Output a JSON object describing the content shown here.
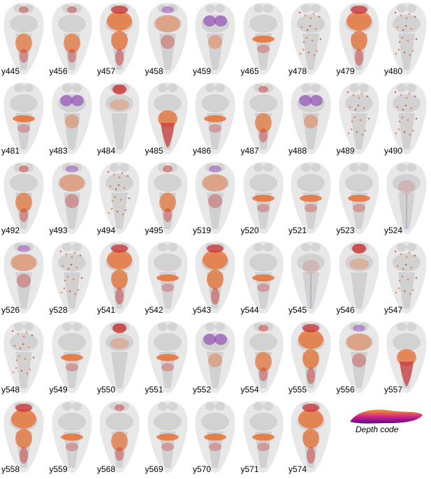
{
  "panels": [
    {
      "label": "y445",
      "pattern": "hindbrain"
    },
    {
      "label": "y456",
      "pattern": "hindbrain"
    },
    {
      "label": "y457",
      "pattern": "broad"
    },
    {
      "label": "y458",
      "pattern": "broad-light"
    },
    {
      "label": "y459",
      "pattern": "tectum-purple"
    },
    {
      "label": "y465",
      "pattern": "band"
    },
    {
      "label": "y478",
      "pattern": "sparse"
    },
    {
      "label": "y479",
      "pattern": "broad"
    },
    {
      "label": "y480",
      "pattern": "sparse"
    },
    {
      "label": "y481",
      "pattern": "band"
    },
    {
      "label": "y483",
      "pattern": "tectum-purple"
    },
    {
      "label": "y484",
      "pattern": "forebrain"
    },
    {
      "label": "y485",
      "pattern": "hindbrain-strong"
    },
    {
      "label": "y486",
      "pattern": "band"
    },
    {
      "label": "y487",
      "pattern": "hindbrain"
    },
    {
      "label": "y488",
      "pattern": "tectum-purple"
    },
    {
      "label": "y489",
      "pattern": "sparse"
    },
    {
      "label": "y490",
      "pattern": "sparse"
    },
    {
      "label": "y492",
      "pattern": "hindbrain"
    },
    {
      "label": "y493",
      "pattern": "broad-light"
    },
    {
      "label": "y494",
      "pattern": "sparse"
    },
    {
      "label": "y495",
      "pattern": "hindbrain"
    },
    {
      "label": "y519",
      "pattern": "broad-light"
    },
    {
      "label": "y520",
      "pattern": "band"
    },
    {
      "label": "y521",
      "pattern": "band"
    },
    {
      "label": "y523",
      "pattern": "band"
    },
    {
      "label": "y524",
      "pattern": "faint"
    },
    {
      "label": "y526",
      "pattern": "broad-light"
    },
    {
      "label": "y528",
      "pattern": "sparse"
    },
    {
      "label": "y541",
      "pattern": "broad"
    },
    {
      "label": "y542",
      "pattern": "band"
    },
    {
      "label": "y543",
      "pattern": "broad"
    },
    {
      "label": "y544",
      "pattern": "band"
    },
    {
      "label": "y545",
      "pattern": "faint"
    },
    {
      "label": "y546",
      "pattern": "forebrain"
    },
    {
      "label": "y547",
      "pattern": "sparse"
    },
    {
      "label": "y548",
      "pattern": "sparse"
    },
    {
      "label": "y549",
      "pattern": "band"
    },
    {
      "label": "y550",
      "pattern": "forebrain"
    },
    {
      "label": "y551",
      "pattern": "band"
    },
    {
      "label": "y552",
      "pattern": "tectum-purple"
    },
    {
      "label": "y554",
      "pattern": "hindbrain"
    },
    {
      "label": "y555",
      "pattern": "broad"
    },
    {
      "label": "y556",
      "pattern": "broad-light"
    },
    {
      "label": "y557",
      "pattern": "hindbrain-strong"
    },
    {
      "label": "y558",
      "pattern": "broad"
    },
    {
      "label": "y559",
      "pattern": "band"
    },
    {
      "label": "y568",
      "pattern": "hindbrain"
    },
    {
      "label": "y569",
      "pattern": "band"
    },
    {
      "label": "y570",
      "pattern": "band"
    },
    {
      "label": "y571",
      "pattern": "band"
    },
    {
      "label": "y574",
      "pattern": "broad"
    }
  ],
  "legend": {
    "label": "Depth code",
    "colors": [
      "#5a0a8c",
      "#c8208a",
      "#f08020"
    ]
  },
  "colors": {
    "brain_outline": "#e2e2e2",
    "brain_inner": "#c9c9c9",
    "signal_orange": "#e86a2a",
    "signal_red": "#c83a3a",
    "signal_purple": "#8a3ab8"
  }
}
